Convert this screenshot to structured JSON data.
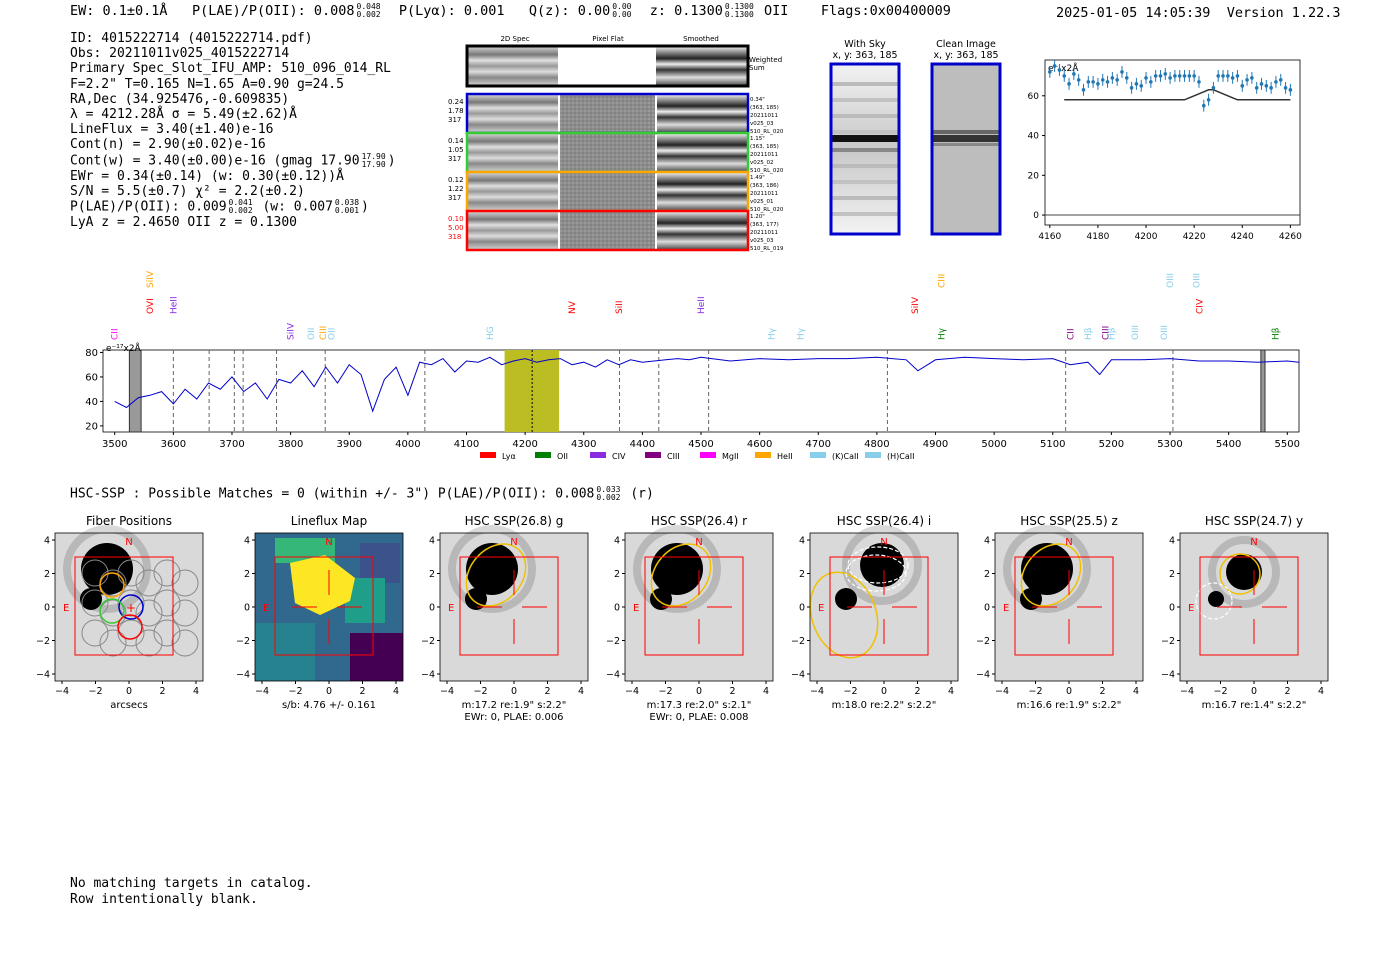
{
  "header": {
    "ew_label": "EW: 0.1±0.1Å",
    "plae_label": "P(LAE)/P(OII): 0.008",
    "plae_up": "0.048",
    "plae_lo": "0.002",
    "plya_label": "P(Lyα): 0.001",
    "qz_label": "Q(z): 0.00",
    "qz_up": "0.00",
    "qz_lo": "0.00",
    "z_label": "z: 0.1300",
    "z_up": "0.1300",
    "z_lo": "0.1300",
    "z_line": "OII",
    "flags": "Flags:0x00400009",
    "datetime": "2025-01-05 14:05:39",
    "version": "Version 1.22.3"
  },
  "info": {
    "id": "ID: 4015222714 (4015222714.pdf)",
    "obs": "Obs: 20211011v025_4015222714",
    "primary": "Primary Spec_Slot_IFU_AMP: 510_096_014_RL",
    "fiber": "F=2.2\"  T=0.165  N=1.65  A=0.90  g=24.5",
    "radec": "RA,Dec (34.925476,-0.609835)",
    "lambda": "λ = 4212.28Å   σ = 5.49(±2.62)Å",
    "lineflux": "LineFlux = 3.40(±1.40)e-16",
    "contn": "Cont(n) = 2.90(±0.02)e-16",
    "contw": "Cont(w) = 3.40(±0.00)e-16 (gmag 17.90",
    "contw_up": "17.90",
    "contw_lo": "17.90",
    "ewr": "EWr = 0.34(±0.14) (w: 0.30(±0.12))Å",
    "sn": "S/N = 5.5(±0.7)  χ² = 2.2(±0.2)",
    "plae": "P(LAE)/P(OII): 0.009",
    "plae_up": "0.041",
    "plae_lo": "0.002",
    "plae_w": "(w: 0.007",
    "plae_w_up": "0.038",
    "plae_w_lo": "0.001",
    "lya_z": "LyA z = 2.4650   OII z = 0.1300"
  },
  "cutouts": {
    "col_headers": [
      "2D Spec",
      "Pixel Flat",
      "Smoothed"
    ],
    "weighted_sum": "Weighted Sum",
    "rows": [
      {
        "left": [
          "0.24",
          "1.78",
          "317"
        ],
        "right": [
          "0.34\"",
          "(363, 185)",
          "20211011",
          "v025_03",
          "510_RL_020"
        ],
        "color": "#0000cc",
        "left_color": "#000000"
      },
      {
        "left": [
          "0.14",
          "1.05",
          "317"
        ],
        "right": [
          "1.15\"",
          "(363, 185)",
          "20211011",
          "v025_02",
          "510_RL_020"
        ],
        "color": "#33cc33",
        "left_color": "#000000"
      },
      {
        "left": [
          "0.12",
          "1.22",
          "317"
        ],
        "right": [
          "1.49\"",
          "(363, 186)",
          "20211011",
          "v025_01",
          "510_RL_020"
        ],
        "color": "#ffa500",
        "left_color": "#000000"
      },
      {
        "left": [
          "0.10",
          "5.00",
          "318"
        ],
        "right": [
          "1.20\"",
          "(363, 177)",
          "20211011",
          "v025_03",
          "510_RL_019"
        ],
        "color": "#ff0000",
        "left_color": "#ff0000"
      }
    ],
    "with_sky_title": "With Sky",
    "with_sky_coord": "x, y: 363, 185",
    "clean_title": "Clean Image",
    "clean_coord": "x, y: 363, 185"
  },
  "emission_line_plot": {
    "unit_label": "e⁻ x2Å",
    "ylim": [
      -5,
      78
    ],
    "yticks": [
      0,
      20,
      40,
      60
    ],
    "xlim": [
      4158,
      4264
    ],
    "xticks": [
      4160,
      4180,
      4200,
      4220,
      4240,
      4260
    ],
    "points_x": [
      4160,
      4162,
      4164,
      4166,
      4168,
      4170,
      4172,
      4174,
      4176,
      4178,
      4180,
      4182,
      4184,
      4186,
      4188,
      4190,
      4192,
      4194,
      4196,
      4198,
      4200,
      4202,
      4204,
      4206,
      4208,
      4210,
      4212,
      4214,
      4216,
      4218,
      4220,
      4222,
      4224,
      4226,
      4228,
      4230,
      4232,
      4234,
      4236,
      4238,
      4240,
      4242,
      4244,
      4246,
      4248,
      4250,
      4252,
      4254,
      4256,
      4258,
      4260
    ],
    "points_y": [
      72,
      75,
      73,
      70,
      66,
      71,
      68,
      63,
      67,
      67,
      66,
      68,
      67,
      69,
      68,
      72,
      69,
      64,
      66,
      65,
      69,
      67,
      70,
      70,
      71,
      69,
      70,
      70,
      70,
      70,
      70,
      67,
      55,
      58,
      64,
      70,
      70,
      70,
      69,
      70,
      65,
      68,
      69,
      64,
      66,
      65,
      64,
      67,
      68,
      64,
      63
    ],
    "model_y": [
      58,
      58,
      58,
      58,
      58,
      58,
      58,
      58,
      58,
      58,
      58,
      58,
      58,
      58,
      58,
      58,
      58,
      58,
      58,
      58,
      58,
      58,
      58,
      58,
      58,
      58,
      58,
      58,
      58,
      59,
      60,
      61,
      62,
      63,
      63,
      62,
      61,
      60,
      59,
      58,
      58,
      58,
      58,
      58,
      58,
      58,
      58,
      58,
      58,
      58,
      58
    ]
  },
  "spectrum": {
    "unit_label": "e⁻¹⁷x2Å",
    "xlim": [
      3480,
      5520
    ],
    "ylim": [
      15,
      82
    ],
    "xticks": [
      3500,
      3600,
      3700,
      3800,
      3900,
      4000,
      4100,
      4200,
      4300,
      4400,
      4500,
      4600,
      4700,
      4800,
      4900,
      5000,
      5100,
      5200,
      5300,
      5400,
      5500
    ],
    "yticks": [
      20,
      40,
      60,
      80
    ],
    "highlight": [
      4165,
      4258
    ],
    "center": 4212,
    "hatch": [
      [
        3525,
        3545
      ],
      [
        5455,
        5462
      ]
    ],
    "dashed": [
      3600,
      3661,
      3704,
      3719,
      3776,
      3859,
      4029,
      4361,
      4428,
      4513,
      4818,
      5122,
      5305
    ],
    "x": [
      3500,
      3520,
      3540,
      3560,
      3580,
      3600,
      3620,
      3640,
      3660,
      3680,
      3700,
      3720,
      3740,
      3760,
      3780,
      3800,
      3820,
      3840,
      3860,
      3880,
      3900,
      3920,
      3940,
      3960,
      3980,
      4000,
      4020,
      4040,
      4060,
      4080,
      4100,
      4120,
      4140,
      4160,
      4180,
      4200,
      4220,
      4240,
      4260,
      4280,
      4300,
      4320,
      4340,
      4360,
      4380,
      4400,
      4420,
      4440,
      4460,
      4480,
      4500,
      4550,
      4600,
      4650,
      4700,
      4750,
      4800,
      4850,
      4870,
      4900,
      4950,
      5000,
      5050,
      5100,
      5130,
      5160,
      5180,
      5200,
      5250,
      5300,
      5350,
      5400,
      5450,
      5500,
      5520
    ],
    "y": [
      40,
      35,
      43,
      45,
      48,
      38,
      50,
      42,
      55,
      50,
      60,
      48,
      55,
      42,
      58,
      55,
      65,
      52,
      68,
      55,
      70,
      62,
      32,
      58,
      68,
      45,
      72,
      70,
      75,
      64,
      73,
      72,
      76,
      70,
      73,
      75,
      72,
      74,
      75,
      70,
      72,
      68,
      74,
      70,
      74,
      72,
      73,
      74,
      75,
      74,
      76,
      73,
      75,
      74,
      75,
      75,
      76,
      74,
      65,
      74,
      76,
      75,
      74,
      75,
      70,
      72,
      62,
      74,
      74,
      75,
      73,
      73,
      72,
      73,
      72
    ],
    "legend": [
      {
        "label": "Lyα",
        "color": "#ff0000"
      },
      {
        "label": "OII",
        "color": "#008000"
      },
      {
        "label": "CIV",
        "color": "#8a2be2"
      },
      {
        "label": "CIII",
        "color": "#800080"
      },
      {
        "label": "MgII",
        "color": "#ff00ff"
      },
      {
        "label": "HeII",
        "color": "#ffa500"
      },
      {
        "label": "(K)CaII",
        "color": "#87ceeb"
      },
      {
        "label": "(H)CaII",
        "color": "#87ceeb"
      }
    ],
    "lines": [
      {
        "label": "CII",
        "x": 3500,
        "color": "#ff00ff",
        "row": 0
      },
      {
        "label": "SiIV",
        "x": 3560,
        "color": "#ffa500",
        "row": 2
      },
      {
        "label": "OVI",
        "x": 3560,
        "color": "#ff0000",
        "row": 1
      },
      {
        "label": "HeII",
        "x": 3600,
        "color": "#8a2be2",
        "row": 1
      },
      {
        "label": "SiIV",
        "x": 3800,
        "color": "#8a2be2",
        "row": 0
      },
      {
        "label": "OII",
        "x": 3835,
        "color": "#87ceeb",
        "row": 0
      },
      {
        "label": "CIII",
        "x": 3855,
        "color": "#ffa500",
        "row": 0
      },
      {
        "label": "OII",
        "x": 3870,
        "color": "#87ceeb",
        "row": 0
      },
      {
        "label": "HG",
        "x": 4140,
        "color": "#87ceeb",
        "row": 0
      },
      {
        "label": "NV",
        "x": 4280,
        "color": "#ff0000",
        "row": 1
      },
      {
        "label": "SiII",
        "x": 4360,
        "color": "#ff0000",
        "row": 1
      },
      {
        "label": "HeII",
        "x": 4500,
        "color": "#8a2be2",
        "row": 1
      },
      {
        "label": "Hγ",
        "x": 4620,
        "color": "#87ceeb",
        "row": 0
      },
      {
        "label": "Hγ",
        "x": 4670,
        "color": "#87ceeb",
        "row": 0
      },
      {
        "label": "SiIV",
        "x": 4865,
        "color": "#ff0000",
        "row": 1
      },
      {
        "label": "CIII",
        "x": 4910,
        "color": "#ffa500",
        "row": 2
      },
      {
        "label": "Hγ",
        "x": 4910,
        "color": "#008000",
        "row": 0
      },
      {
        "label": "CII",
        "x": 5130,
        "color": "#800080",
        "row": 0
      },
      {
        "label": "Hβ",
        "x": 5160,
        "color": "#87ceeb",
        "row": 0
      },
      {
        "label": "CIII",
        "x": 5190,
        "color": "#800080",
        "row": 0
      },
      {
        "label": "Hβ",
        "x": 5200,
        "color": "#87ceeb",
        "row": 0
      },
      {
        "label": "OIII",
        "x": 5240,
        "color": "#87ceeb",
        "row": 0
      },
      {
        "label": "OIII",
        "x": 5290,
        "color": "#87ceeb",
        "row": 0
      },
      {
        "label": "OIII",
        "x": 5300,
        "color": "#87ceeb",
        "row": 2
      },
      {
        "label": "OIII",
        "x": 5345,
        "color": "#87ceeb",
        "row": 2
      },
      {
        "label": "CIV",
        "x": 5350,
        "color": "#ff0000",
        "row": 1
      },
      {
        "label": "Hβ",
        "x": 5480,
        "color": "#008000",
        "row": 0
      }
    ]
  },
  "hsc": {
    "title": "HSC-SSP : Possible Matches = 0 (within +/- 3\")  P(LAE)/P(OII): 0.008",
    "plae_up": "0.033",
    "plae_lo": "0.002",
    "band_suffix": "(r)",
    "panels": [
      {
        "title": "Fiber Positions",
        "caption": [
          "arcsecs"
        ],
        "kind": "fiber"
      },
      {
        "title": "Lineflux Map",
        "caption": [
          "s/b: 4.76 +/- 0.161"
        ],
        "kind": "lineflux"
      },
      {
        "title": "HSC SSP(26.8) g",
        "caption": [
          "m:17.2  re:1.9\"  s:2.2\"",
          "EWr: 0, PLAE: 0.006"
        ],
        "kind": "g"
      },
      {
        "title": "HSC SSP(26.4) r",
        "caption": [
          "m:17.3  re:2.0\"  s:2.1\"",
          "EWr: 0, PLAE: 0.008"
        ],
        "kind": "r"
      },
      {
        "title": "HSC SSP(26.4) i",
        "caption": [
          "m:18.0  re:2.2\"  s:2.2\""
        ],
        "kind": "i"
      },
      {
        "title": "HSC SSP(25.5) z",
        "caption": [
          "m:16.6  re:1.9\"  s:2.2\""
        ],
        "kind": "z"
      },
      {
        "title": "HSC SSP(24.7) y",
        "caption": [
          "m:16.7  re:1.4\"  s:2.2\""
        ],
        "kind": "y"
      }
    ],
    "ticks_x": [
      "−4",
      "−2",
      "0",
      "2",
      "4"
    ],
    "ticks_y": [
      "4",
      "2",
      "0",
      "−2",
      "−4"
    ],
    "compass_n": "N",
    "compass_e": "E"
  },
  "footer": {
    "line1": "No matching targets in catalog.",
    "line2": "Row intentionally blank."
  }
}
